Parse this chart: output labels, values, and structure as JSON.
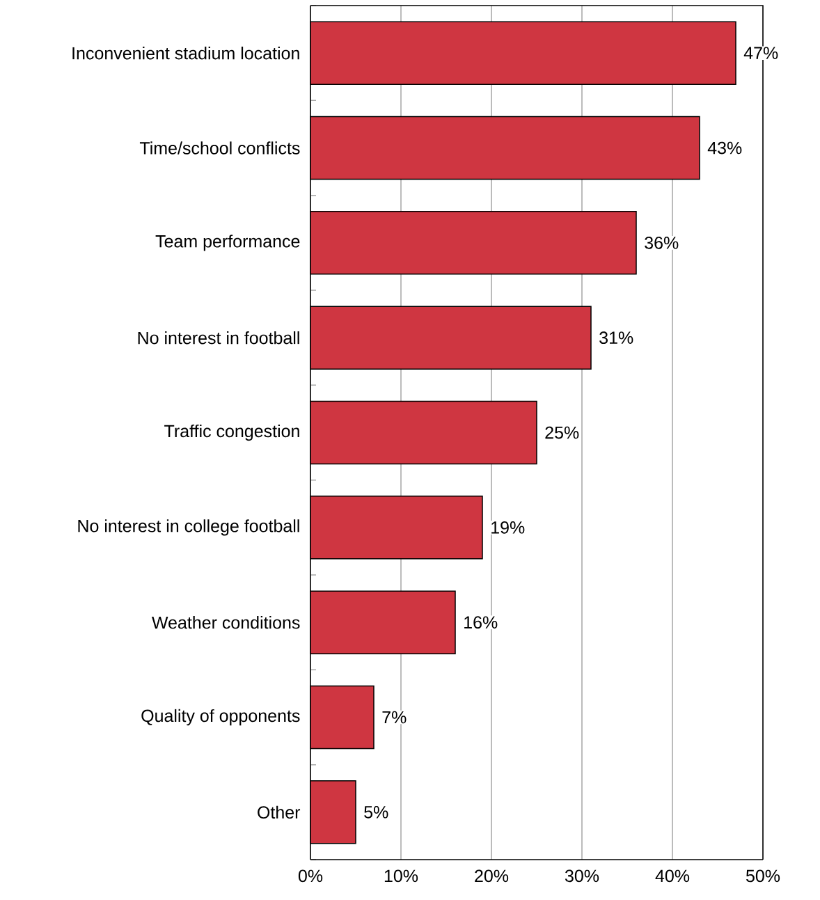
{
  "chart_data": {
    "type": "bar",
    "orientation": "horizontal",
    "categories": [
      "Inconvenient stadium location",
      "Time/school conflicts",
      "Team performance",
      "No interest in football",
      "Traffic congestion",
      "No interest in college football",
      "Weather conditions",
      "Quality of opponents",
      "Other"
    ],
    "values": [
      47,
      43,
      36,
      31,
      25,
      19,
      16,
      7,
      5
    ],
    "value_labels": [
      "47%",
      "43%",
      "36%",
      "31%",
      "25%",
      "19%",
      "16%",
      "7%",
      "5%"
    ],
    "color": "#cf3641",
    "xlim": [
      0,
      50
    ],
    "xticks": [
      {
        "value": 0,
        "label": "0%"
      },
      {
        "value": 10,
        "label": "10%"
      },
      {
        "value": 20,
        "label": "20%"
      },
      {
        "value": 30,
        "label": "30%"
      },
      {
        "value": 40,
        "label": "40%"
      },
      {
        "value": 50,
        "label": "50%"
      }
    ],
    "grid": "x"
  }
}
